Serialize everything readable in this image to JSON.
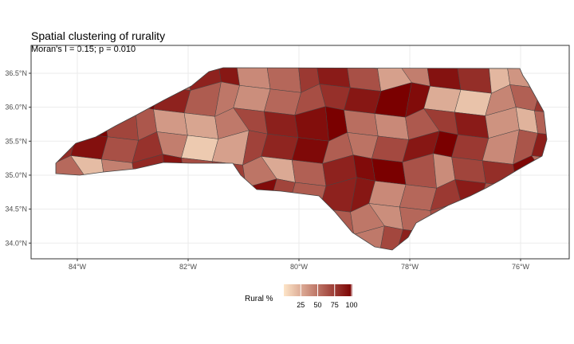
{
  "chart_data": {
    "type": "choropleth",
    "title": "Spatial clustering of rurality",
    "subtitle": "Moran's I = 0.15; p = 0.010",
    "x_ticks": [
      "84°W",
      "82°W",
      "80°W",
      "78°W",
      "76°W"
    ],
    "x_tick_values": [
      -84,
      -82,
      -80,
      -78,
      -76
    ],
    "y_ticks": [
      "36.5°N",
      "36.0°N",
      "35.5°N",
      "35.0°N",
      "34.5°N",
      "34.0°N"
    ],
    "y_tick_values": [
      36.5,
      36.0,
      35.5,
      35.0,
      34.5,
      34.0
    ],
    "xlim": [
      -84.75,
      -75.0
    ],
    "ylim": [
      33.8,
      36.75
    ],
    "grid": true,
    "legend": {
      "title": "Rural %",
      "ticks": [
        "25",
        "50",
        "75",
        "100"
      ],
      "tick_values": [
        25,
        50,
        75,
        100
      ],
      "range": [
        0,
        100
      ],
      "low_color": "#fde5c8",
      "high_color": "#7a0000",
      "placement": "bottom"
    },
    "rural_pct": [
      100,
      98,
      95,
      70,
      60,
      85,
      90,
      40,
      55,
      75,
      88,
      65,
      30,
      45,
      92,
      80,
      20,
      35,
      50,
      72,
      68,
      97,
      100,
      85,
      60,
      48,
      38,
      55,
      66,
      79,
      90,
      100,
      95,
      25,
      15,
      42,
      58,
      77,
      83,
      99,
      70,
      62,
      33,
      28,
      47,
      69,
      86,
      94,
      100,
      52,
      40,
      61,
      74,
      88,
      36,
      22,
      57,
      81,
      93,
      65,
      78,
      45,
      12,
      30,
      71,
      84,
      96,
      59,
      50,
      68,
      90,
      100,
      75,
      40,
      63,
      87,
      54,
      18,
      44,
      82,
      91,
      67,
      73,
      49,
      26,
      58,
      85,
      95,
      100,
      64,
      39,
      70,
      80,
      97,
      53,
      61,
      76,
      88,
      35,
      99
    ]
  }
}
